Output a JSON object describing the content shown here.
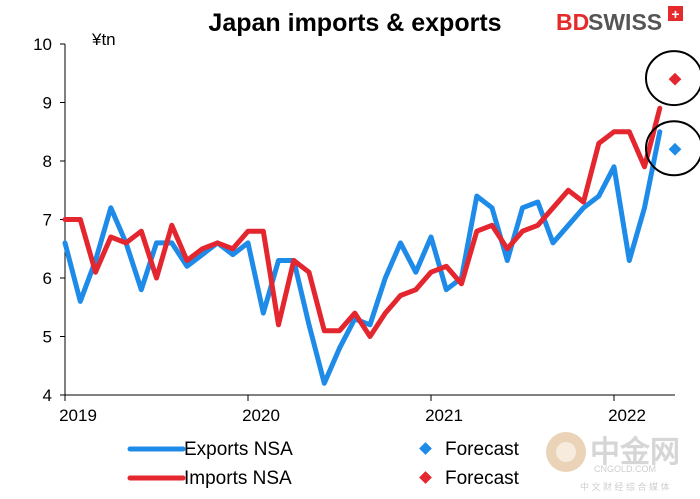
{
  "brand": {
    "text_bd": "BD",
    "text_swiss": "SWISS",
    "cross": "+",
    "color_red": "#e42a2a",
    "color_grey": "#555555"
  },
  "watermark": {
    "logo_text": "中金网",
    "url_text": "CNGOLD.COM",
    "sub_text": "中 文 财 经 综 合 媒 体",
    "color": "#d6d6d6"
  },
  "chart_data": {
    "type": "line",
    "title": "Japan imports & exports",
    "ylabel": "¥tn",
    "xlabel": "",
    "ylim": [
      4,
      10
    ],
    "yticks": [
      4,
      5,
      6,
      7,
      8,
      9,
      10
    ],
    "x_unit": "month index starting Jan 2019",
    "xlim": [
      0,
      40
    ],
    "xticks": [
      {
        "label": "2019",
        "x": 0
      },
      {
        "label": "2020",
        "x": 12
      },
      {
        "label": "2021",
        "x": 24
      },
      {
        "label": "2022",
        "x": 36
      }
    ],
    "series": [
      {
        "name": "Exports NSA",
        "color": "#1e8be8",
        "x": [
          0,
          1,
          2,
          3,
          4,
          5,
          6,
          7,
          8,
          9,
          10,
          11,
          12,
          13,
          14,
          15,
          16,
          17,
          18,
          19,
          20,
          21,
          22,
          23,
          24,
          25,
          26,
          27,
          28,
          29,
          30,
          31,
          32,
          33,
          34,
          35,
          36,
          37,
          38
        ],
        "values": [
          6.6,
          5.6,
          6.3,
          7.2,
          6.6,
          5.8,
          6.6,
          6.6,
          6.2,
          6.4,
          6.6,
          6.4,
          6.6,
          5.4,
          6.3,
          6.3,
          5.2,
          4.2,
          4.8,
          5.3,
          5.2,
          6.0,
          6.6,
          6.1,
          6.7,
          5.8,
          6.0,
          7.4,
          7.2,
          6.3,
          7.2,
          7.3,
          6.6,
          6.9,
          7.2,
          7.4,
          7.9,
          6.3,
          7.2
        ]
      },
      {
        "name": "Imports NSA",
        "color": "#e4262f",
        "x": [
          0,
          1,
          2,
          3,
          4,
          5,
          6,
          7,
          8,
          9,
          10,
          11,
          12,
          13,
          14,
          15,
          16,
          17,
          18,
          19,
          20,
          21,
          22,
          23,
          24,
          25,
          26,
          27,
          28,
          29,
          30,
          31,
          32,
          33,
          34,
          35,
          36,
          37,
          38
        ],
        "values": [
          7.0,
          7.0,
          6.1,
          6.7,
          6.6,
          6.8,
          6.0,
          6.9,
          6.3,
          6.5,
          6.6,
          6.5,
          6.8,
          6.8,
          5.2,
          6.3,
          6.1,
          5.1,
          5.1,
          5.4,
          5.0,
          5.4,
          5.7,
          5.8,
          6.1,
          6.2,
          5.9,
          6.8,
          6.9,
          6.5,
          6.8,
          6.9,
          7.2,
          7.5,
          7.3,
          8.3,
          8.5,
          8.5,
          7.9
        ]
      }
    ],
    "extension": {
      "exports_end": {
        "x": 39,
        "value": 8.5
      },
      "imports_end": {
        "x": 39,
        "value": 8.9
      }
    },
    "forecasts": [
      {
        "name": "Forecast",
        "series": "Exports NSA",
        "x": 40,
        "value": 8.2,
        "color": "#1e8be8",
        "circled": true
      },
      {
        "name": "Forecast",
        "series": "Imports NSA",
        "x": 40,
        "value": 9.4,
        "color": "#e4262f",
        "circled": true
      }
    ],
    "legend": {
      "placement": "bottom",
      "entries": [
        {
          "label": "Exports NSA",
          "kind": "line",
          "color": "#1e8be8"
        },
        {
          "label": "Forecast",
          "kind": "diamond",
          "color": "#1e8be8"
        },
        {
          "label": "Imports NSA",
          "kind": "line",
          "color": "#e4262f"
        },
        {
          "label": "Forecast",
          "kind": "diamond",
          "color": "#e4262f"
        }
      ]
    },
    "grid": false
  }
}
